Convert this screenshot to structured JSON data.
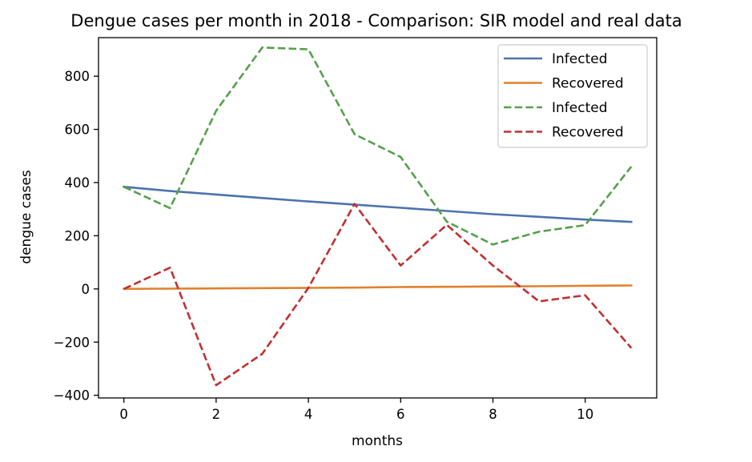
{
  "chart_data": {
    "type": "line",
    "title": "Dengue cases per month in 2018 - Comparison: SIR model and real data",
    "xlabel": "months",
    "ylabel": "dengue cases",
    "xlim": [
      -0.55,
      11.55
    ],
    "ylim": [
      -410,
      945
    ],
    "xticks": [
      0,
      2,
      4,
      6,
      8,
      10
    ],
    "yticks": [
      -400,
      -200,
      0,
      200,
      400,
      600,
      800
    ],
    "xtick_labels": [
      "0",
      "2",
      "4",
      "6",
      "8",
      "10"
    ],
    "ytick_labels": [
      "−400",
      "−200",
      "0",
      "200",
      "400",
      "600",
      "800"
    ],
    "grid": false,
    "legend_position": "top-right",
    "x": [
      0,
      1,
      2,
      3,
      4,
      5,
      6,
      7,
      8,
      9,
      10,
      11
    ],
    "series": [
      {
        "name": "Infected",
        "color": "#4c72b0",
        "style": "solid",
        "values": [
          384,
          368,
          355,
          342,
          329,
          317,
          305,
          293,
          281,
          271,
          261,
          252
        ]
      },
      {
        "name": "Recovered",
        "color": "#e1812c",
        "style": "solid",
        "values": [
          0,
          1,
          2,
          3,
          4,
          5,
          7,
          8,
          9,
          10,
          12,
          13
        ]
      },
      {
        "name": "Infected",
        "color": "#55a04a",
        "style": "dashed",
        "values": [
          384,
          304,
          670,
          908,
          901,
          582,
          496,
          253,
          167,
          215,
          240,
          460
        ]
      },
      {
        "name": "Recovered",
        "color": "#c03030",
        "style": "dashed",
        "values": [
          0,
          80,
          -362,
          -244,
          4,
          320,
          88,
          241,
          88,
          -47,
          -24,
          -222
        ]
      }
    ]
  }
}
